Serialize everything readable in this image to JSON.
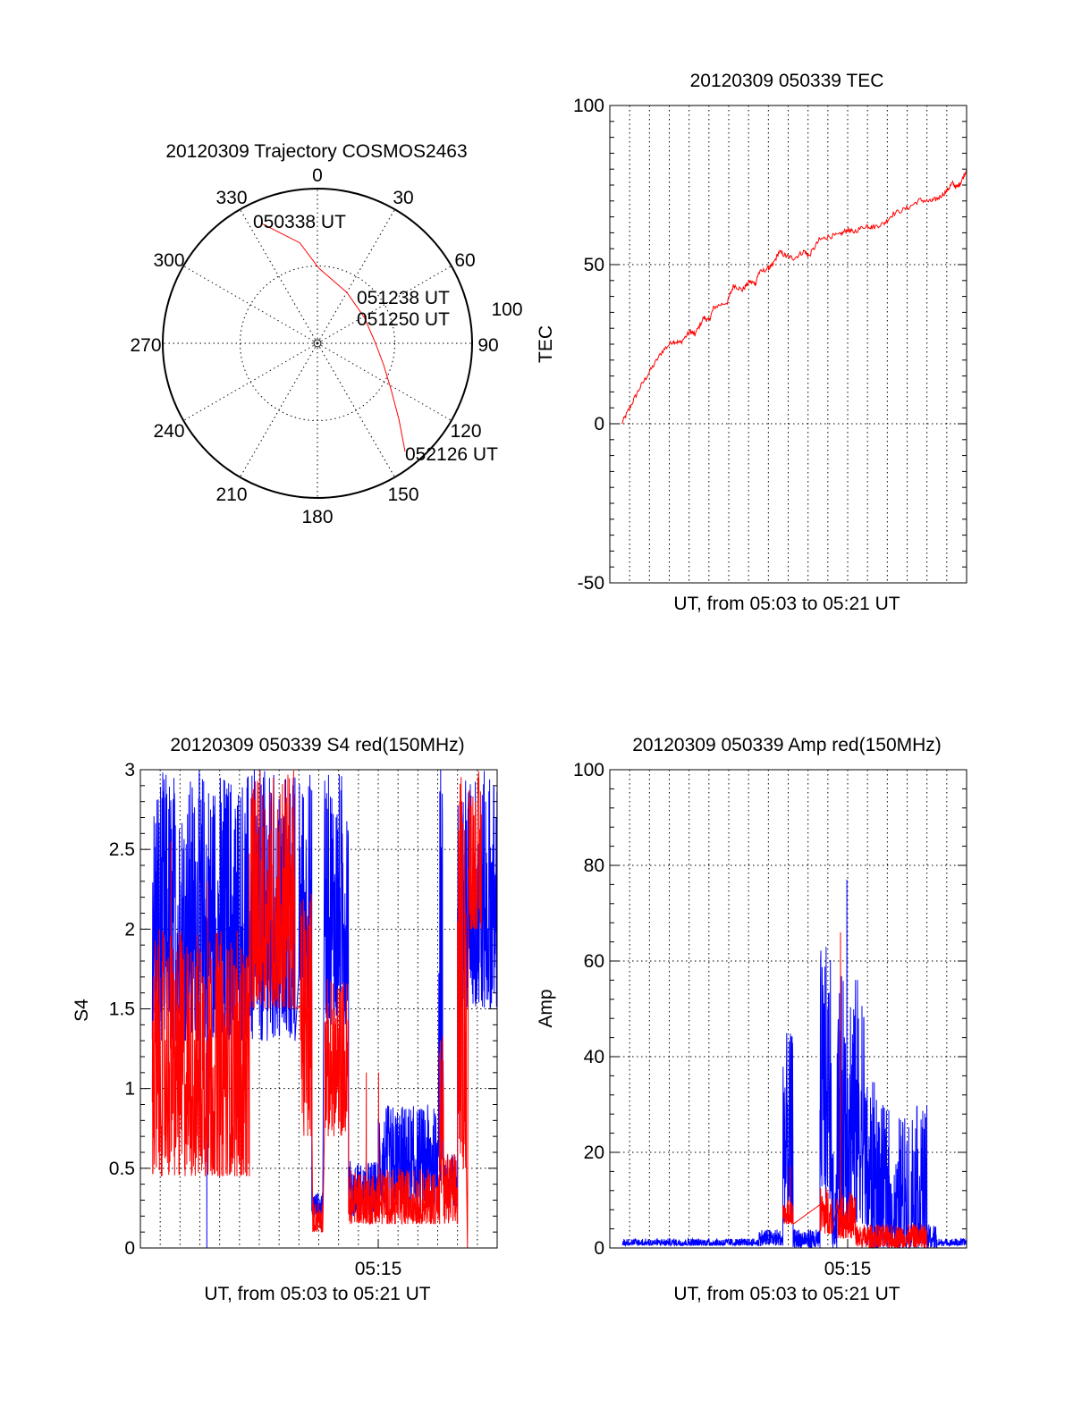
{
  "colors": {
    "red": "#ff0000",
    "blue": "#0000ff"
  },
  "chart_data": [
    {
      "type": "polar",
      "title": "20120309 Trajectory COSMOS2463",
      "angle_labels": [
        "0",
        "30",
        "60",
        "90",
        "120",
        "150",
        "180",
        "210",
        "240",
        "270",
        "300",
        "330"
      ],
      "radius_label": "100",
      "rlim": [
        0,
        100
      ],
      "grid": true,
      "trajectory": {
        "color": "red",
        "points": [
          {
            "az": 335,
            "r": 85.5
          },
          {
            "az": 350,
            "r": 66
          },
          {
            "az": 1,
            "r": 48.6
          },
          {
            "az": 30,
            "r": 38
          },
          {
            "az": 61,
            "r": 34.6
          },
          {
            "az": 90,
            "r": 37.6
          },
          {
            "az": 108,
            "r": 45
          },
          {
            "az": 122,
            "r": 56
          },
          {
            "az": 133,
            "r": 72
          },
          {
            "az": 141,
            "r": 90
          }
        ]
      },
      "annotations": [
        "050338 UT",
        "051238 UT",
        "051250 UT",
        "052126 UT"
      ]
    },
    {
      "type": "line",
      "title": "20120309 050339 TEC",
      "xlabel": "UT, from 05:03 to 05:21 UT",
      "ylabel": "TEC",
      "xlim_minutes_after_0503": [
        0,
        18
      ],
      "ylim": [
        -50,
        100
      ],
      "yticks": [
        "100",
        "50",
        "0",
        "-50"
      ],
      "ytick_values": [
        100,
        50,
        0,
        -50
      ],
      "grid": true,
      "series": [
        {
          "name": "TEC",
          "color": "red",
          "t": [
            0.6,
            1.0,
            1.49,
            2.05,
            2.64,
            3.17,
            3.54,
            4.06,
            4.29,
            4.74,
            5.0,
            5.25,
            5.93,
            6.25,
            6.68,
            7.05,
            7.35,
            7.5,
            8.0,
            8.17,
            8.54,
            8.92,
            9.3,
            9.82,
            10.04,
            10.56,
            11.01,
            11.6,
            11.98,
            12.28,
            12.95,
            13.25,
            13.85,
            14.3,
            15.04,
            15.64,
            16.16,
            16.54,
            16.98,
            17.28,
            17.5,
            17.73,
            18.0
          ],
          "values": [
            0,
            5,
            11,
            16.8,
            22.7,
            26,
            25.4,
            29,
            28,
            33.4,
            32.3,
            36.6,
            38.2,
            43.6,
            42,
            44.7,
            44,
            47.3,
            48.9,
            49.4,
            54,
            52.6,
            52,
            54.3,
            52.6,
            57.7,
            58.8,
            59.3,
            61,
            60.2,
            62.3,
            61.7,
            63,
            66,
            67.8,
            70.3,
            69.8,
            70.8,
            73,
            75.6,
            74.2,
            76.1,
            79.9
          ]
        }
      ]
    },
    {
      "type": "line",
      "title": "20120309 050339 S4 red(150MHz)",
      "xlabel": "UT, from 05:03 to 05:21 UT",
      "ylabel": "S4",
      "xtick_label": "05:15",
      "xtick_minute": 12,
      "xlim_minutes_after_0503": [
        0,
        18
      ],
      "ylim": [
        0,
        3
      ],
      "yticks": [
        "3",
        "2.5",
        "2",
        "1.5",
        "1",
        "0.5",
        "0"
      ],
      "ytick_values": [
        3,
        2.5,
        2,
        1.5,
        1,
        0.5,
        0
      ],
      "grid": true,
      "series": [
        {
          "name": "blue",
          "color": "blue",
          "segments": [
            [
              0.6,
              7.8,
              1.3,
              3
            ],
            [
              8.0,
              8.65,
              1.5,
              3
            ],
            [
              8.65,
              9.2,
              0.2,
              0.35
            ],
            [
              9.3,
              10.5,
              1.4,
              3
            ],
            [
              10.5,
              12.0,
              0.2,
              0.55
            ],
            [
              12.0,
              15.0,
              0.25,
              0.9
            ],
            [
              15.0,
              15.3,
              0.4,
              3
            ],
            [
              15.3,
              16.0,
              0.25,
              0.6
            ],
            [
              16.0,
              18.0,
              1.5,
              3
            ]
          ],
          "spikes": [
            [
              3.35,
              0
            ],
            [
              15.15,
              3
            ]
          ]
        },
        {
          "name": "red",
          "color": "red",
          "segments": [
            [
              0.6,
              5.5,
              0.45,
              2.0
            ],
            [
              5.5,
              7.8,
              1.5,
              3
            ],
            [
              8.07,
              8.66,
              0.7,
              2.3
            ],
            [
              8.7,
              9.2,
              0.1,
              0.3
            ],
            [
              9.3,
              10.5,
              0.7,
              1.7
            ],
            [
              10.5,
              15.1,
              0.15,
              0.5
            ],
            [
              15.1,
              15.3,
              0.3,
              1.4
            ],
            [
              15.3,
              16.0,
              0.15,
              0.6
            ],
            [
              16.0,
              16.45,
              0.5,
              3
            ],
            [
              16.55,
              17.2,
              2.0,
              3
            ]
          ],
          "spikes": [
            [
              1.55,
              2.55
            ],
            [
              3.4,
              2.3
            ],
            [
              11.4,
              1.1
            ],
            [
              12.02,
              1.1
            ],
            [
              16.5,
              0
            ]
          ]
        }
      ]
    },
    {
      "type": "line",
      "title": "20120309 050339 Amp red(150MHz)",
      "xlabel": "UT, from 05:03 to 05:21 UT",
      "ylabel": "Amp",
      "xtick_label": "05:15",
      "xtick_minute": 12,
      "xlim_minutes_after_0503": [
        0,
        18
      ],
      "ylim": [
        0,
        100
      ],
      "yticks": [
        "100",
        "80",
        "60",
        "40",
        "20",
        "0"
      ],
      "ytick_values": [
        100,
        80,
        60,
        40,
        20,
        0
      ],
      "grid": true,
      "series": [
        {
          "name": "blue",
          "color": "blue",
          "segments": [
            [
              0.63,
              7.5,
              0.5,
              2
            ],
            [
              7.5,
              8.73,
              0.5,
              4
            ],
            [
              8.73,
              9.25,
              5,
              45
            ],
            [
              9.25,
              10.6,
              0,
              4
            ],
            [
              10.6,
              11.2,
              10,
              63
            ],
            [
              11.2,
              11.45,
              0,
              20
            ],
            [
              11.45,
              12.9,
              5,
              57
            ],
            [
              12.9,
              13.5,
              0,
              35
            ],
            [
              13.5,
              14.1,
              0,
              30
            ],
            [
              14.1,
              14.6,
              0,
              19
            ],
            [
              14.6,
              15.1,
              0,
              28
            ],
            [
              15.2,
              16.0,
              0,
              30
            ],
            [
              16.0,
              16.5,
              0,
              5
            ],
            [
              16.5,
              18.0,
              0.5,
              2
            ]
          ],
          "spikes": [
            [
              11.96,
              77
            ]
          ]
        },
        {
          "name": "red",
          "color": "red",
          "segments": [
            [
              8.73,
              9.25,
              5,
              10
            ],
            [
              10.6,
              11.2,
              3,
              13
            ],
            [
              11.5,
              12.4,
              2,
              12
            ],
            [
              12.4,
              16.0,
              0,
              5
            ]
          ],
          "spikes": [
            [
              9.1,
              17
            ],
            [
              11.64,
              66
            ]
          ]
        }
      ]
    }
  ]
}
